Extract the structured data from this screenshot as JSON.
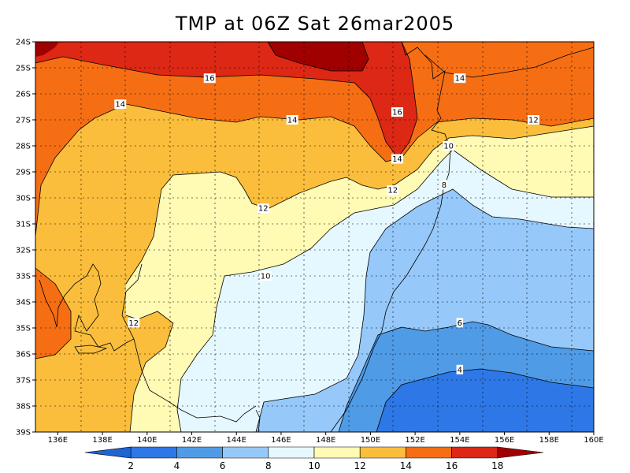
{
  "title": "TMP at 06Z Sat 26mar2005",
  "lat_labels": [
    "24S",
    "25S",
    "26S",
    "27S",
    "28S",
    "29S",
    "30S",
    "31S",
    "32S",
    "33S",
    "34S",
    "35S",
    "36S",
    "37S",
    "38S",
    "39S"
  ],
  "lon_labels": [
    "136E",
    "138E",
    "140E",
    "142E",
    "144E",
    "146E",
    "148E",
    "150E",
    "152E",
    "154E",
    "156E",
    "158E",
    "160E"
  ],
  "contour_labels": [
    {
      "text": "16",
      "lon": 142.8,
      "lat": -25.4
    },
    {
      "text": "16",
      "lon": 151.2,
      "lat": -26.7
    },
    {
      "text": "14",
      "lon": 138.8,
      "lat": -26.4
    },
    {
      "text": "14",
      "lon": 146.5,
      "lat": -27.0
    },
    {
      "text": "14",
      "lon": 154.0,
      "lat": -25.4
    },
    {
      "text": "14",
      "lon": 151.2,
      "lat": -28.5
    },
    {
      "text": "12",
      "lon": 157.3,
      "lat": -27.0
    },
    {
      "text": "12",
      "lon": 151.0,
      "lat": -29.7
    },
    {
      "text": "12",
      "lon": 145.2,
      "lat": -30.4
    },
    {
      "text": "12",
      "lon": 139.4,
      "lat": -34.8
    },
    {
      "text": "10",
      "lon": 153.5,
      "lat": -28.0
    },
    {
      "text": "10",
      "lon": 145.3,
      "lat": -33.0
    },
    {
      "text": "8",
      "lon": 153.3,
      "lat": -29.5
    },
    {
      "text": "6",
      "lon": 154.0,
      "lat": -34.8
    },
    {
      "text": "4",
      "lon": 154.0,
      "lat": -36.6
    }
  ],
  "colorbar": {
    "labels": [
      "2",
      "4",
      "6",
      "8",
      "10",
      "12",
      "14",
      "16",
      "18"
    ],
    "colors": [
      "#1e64d2",
      "#2d78e6",
      "#509be6",
      "#96c8fa",
      "#e6f8ff",
      "#fffab4",
      "#fabe3c",
      "#f56e14",
      "#dc2814",
      "#a00000"
    ]
  },
  "colors": {
    "c18": "#a00000",
    "c16": "#dc2814",
    "c14": "#f56e14",
    "c12": "#fabe3c",
    "c10": "#fffab4",
    "c8": "#e6f8ff",
    "c6": "#96c8fa",
    "c4": "#509be6",
    "c2": "#2d78e6"
  }
}
